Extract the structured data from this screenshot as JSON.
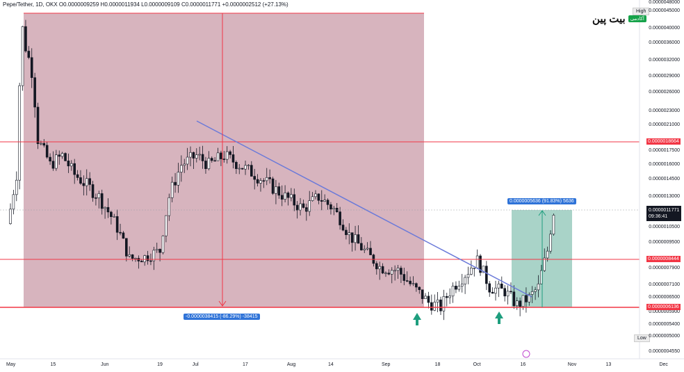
{
  "header": {
    "text": "Pepe/Tether, 1D, OKX   O0.0000009259  H0.0000011934  L0.0000009109  C0.0000011771  +0.0000002512 (+27.13%)"
  },
  "logo": {
    "text": "بیت پین",
    "badge": "آکادمی"
  },
  "hilo": {
    "high": "High",
    "low": "Low"
  },
  "yaxis": [
    {
      "label": "0.0000048000",
      "v": 48000
    },
    {
      "label": "0.0000045000",
      "v": 45000
    },
    {
      "label": "0.0000040000",
      "v": 40000
    },
    {
      "label": "0.0000036000",
      "v": 36000
    },
    {
      "label": "0.0000032000",
      "v": 32000
    },
    {
      "label": "0.0000029000",
      "v": 29000
    },
    {
      "label": "0.0000026000",
      "v": 26000
    },
    {
      "label": "0.0000023000",
      "v": 23000
    },
    {
      "label": "0.0000021000",
      "v": 21000
    },
    {
      "label": "0.0000017500",
      "v": 17500
    },
    {
      "label": "0.0000016000",
      "v": 16000
    },
    {
      "label": "0.0000014500",
      "v": 14500
    },
    {
      "label": "0.0000013000",
      "v": 13000
    },
    {
      "label": "0.0000010500",
      "v": 10500
    },
    {
      "label": "0.0000009500",
      "v": 9500
    },
    {
      "label": "0.0000007900",
      "v": 7900
    },
    {
      "label": "0.0000007100",
      "v": 7100
    },
    {
      "label": "0.0000006500",
      "v": 6500
    },
    {
      "label": "0.0000005900",
      "v": 5900
    },
    {
      "label": "0.0000005400",
      "v": 5400
    },
    {
      "label": "0.0000005000",
      "v": 5000
    },
    {
      "label": "0.0000004550",
      "v": 4550
    }
  ],
  "price_tags": {
    "level1": "0.0000018664",
    "level2": "0.0000008444",
    "level3": "0.0000006136",
    "current": "0.0000011771",
    "countdown": "09:36:41"
  },
  "measure": {
    "down": "-0.0000038415 (-86.29%) -38415",
    "up": "0.0000005636 (91.83%) 5636"
  },
  "xaxis": [
    {
      "label": "May",
      "d": 0
    },
    {
      "label": "15",
      "d": 14
    },
    {
      "label": "Jun",
      "d": 31
    },
    {
      "label": "19",
      "d": 49
    },
    {
      "label": "Jul",
      "d": 61
    },
    {
      "label": "17",
      "d": 77
    },
    {
      "label": "Aug",
      "d": 92
    },
    {
      "label": "14",
      "d": 105
    },
    {
      "label": "Sep",
      "d": 123
    },
    {
      "label": "18",
      "d": 140
    },
    {
      "label": "Oct",
      "d": 153
    },
    {
      "label": "16",
      "d": 168
    },
    {
      "label": "Nov",
      "d": 184
    },
    {
      "label": "13",
      "d": 196
    },
    {
      "label": "Dec",
      "d": 214
    }
  ],
  "chart_data": {
    "type": "candlestick",
    "symbol": "Pepe/Tether",
    "timeframe": "1D",
    "exchange": "OKX",
    "colors": {
      "up": "#1e7b64",
      "down": "#131722",
      "wick": "#131722",
      "red_zone": "#d7b4be",
      "green_zone": "#a9d3c8",
      "trendline": "#6b7ad9",
      "hline": "#f23645"
    },
    "horizontal_levels": [
      1.8664e-06,
      8.444e-07,
      6.136e-07
    ],
    "trendline": {
      "from": {
        "date": "Jul 1",
        "price": 2.1e-06
      },
      "to": {
        "date": "Oct 26",
        "price": 6e-07
      }
    },
    "close_series": [
      {
        "date": "May 1",
        "close": 1.2e-06
      },
      {
        "date": "May 3",
        "close": 1.5e-06
      },
      {
        "date": "May 5",
        "close": 4e-06
      },
      {
        "date": "May 6",
        "close": 3.5e-06
      },
      {
        "date": "May 8",
        "close": 3e-06
      },
      {
        "date": "May 10",
        "close": 1.9e-06
      },
      {
        "date": "May 14",
        "close": 1.6e-06
      },
      {
        "date": "May 18",
        "close": 1.7e-06
      },
      {
        "date": "May 22",
        "close": 1.5e-06
      },
      {
        "date": "May 26",
        "close": 1.4e-06
      },
      {
        "date": "May 30",
        "close": 1.3e-06
      },
      {
        "date": "Jun 4",
        "close": 1.1e-06
      },
      {
        "date": "Jun 9",
        "close": 8.5e-07
      },
      {
        "date": "Jun 14",
        "close": 8.6e-07
      },
      {
        "date": "Jun 19",
        "close": 9e-07
      },
      {
        "date": "Jun 22",
        "close": 1.3e-06
      },
      {
        "date": "Jun 26",
        "close": 1.6e-06
      },
      {
        "date": "Jul 1",
        "close": 1.7e-06
      },
      {
        "date": "Jul 5",
        "close": 1.6e-06
      },
      {
        "date": "Jul 10",
        "close": 1.7e-06
      },
      {
        "date": "Jul 15",
        "close": 1.6e-06
      },
      {
        "date": "Jul 20",
        "close": 1.5e-06
      },
      {
        "date": "Jul 25",
        "close": 1.4e-06
      },
      {
        "date": "Jul 30",
        "close": 1.3e-06
      },
      {
        "date": "Aug 5",
        "close": 1.2e-06
      },
      {
        "date": "Aug 10",
        "close": 1.3e-06
      },
      {
        "date": "Aug 15",
        "close": 1.2e-06
      },
      {
        "date": "Aug 20",
        "close": 1e-06
      },
      {
        "date": "Aug 25",
        "close": 9e-07
      },
      {
        "date": "Aug 30",
        "close": 8e-07
      },
      {
        "date": "Sep 5",
        "close": 7.8e-07
      },
      {
        "date": "Sep 10",
        "close": 7e-07
      },
      {
        "date": "Sep 15",
        "close": 6.3e-07
      },
      {
        "date": "Sep 19",
        "close": 6.1e-07
      },
      {
        "date": "Sep 23",
        "close": 7e-07
      },
      {
        "date": "Sep 28",
        "close": 7.8e-07
      },
      {
        "date": "Oct 1",
        "close": 8.4e-07
      },
      {
        "date": "Oct 5",
        "close": 7e-07
      },
      {
        "date": "Oct 10",
        "close": 6.8e-07
      },
      {
        "date": "Oct 14",
        "close": 6.2e-07
      },
      {
        "date": "Oct 18",
        "close": 6.5e-07
      },
      {
        "date": "Oct 21",
        "close": 7e-07
      },
      {
        "date": "Oct 24",
        "close": 9e-07
      },
      {
        "date": "Oct 26",
        "close": 1.1771e-06
      }
    ]
  }
}
